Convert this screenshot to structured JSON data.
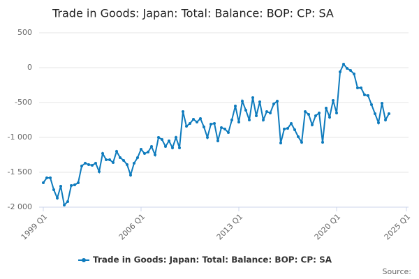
{
  "chart_data": {
    "type": "line",
    "title": "Trade in Goods: Japan: Total: Balance: BOP: CP: SA",
    "source": "Source:",
    "categories": [
      "1999 Q1",
      null,
      null,
      null,
      null,
      null,
      null,
      null,
      null,
      null,
      null,
      null,
      null,
      null,
      null,
      null,
      null,
      null,
      null,
      null,
      null,
      null,
      null,
      null,
      null,
      null,
      null,
      null,
      "2006 Q1",
      null,
      null,
      null,
      null,
      null,
      null,
      null,
      null,
      null,
      null,
      null,
      null,
      null,
      null,
      null,
      null,
      null,
      null,
      null,
      null,
      null,
      null,
      null,
      null,
      null,
      null,
      null,
      "2013 Q1",
      null,
      null,
      null,
      null,
      null,
      null,
      null,
      null,
      null,
      null,
      null,
      null,
      null,
      null,
      null,
      null,
      null,
      null,
      null,
      null,
      null,
      null,
      null,
      null,
      null,
      null,
      null,
      "2020 Q1",
      null,
      null,
      null,
      null,
      null,
      null,
      null,
      null,
      null,
      null,
      null,
      null,
      null,
      null,
      null,
      null,
      null,
      null,
      null,
      "2025 Q1"
    ],
    "series": [
      {
        "name": "Trade in Goods: Japan: Total: Balance: BOP: CP: SA",
        "color": "#0e7bbd",
        "values": [
          -1650,
          -1580,
          -1580,
          -1750,
          -1870,
          -1700,
          -1970,
          -1920,
          -1690,
          -1680,
          -1650,
          -1410,
          -1370,
          -1390,
          -1400,
          -1370,
          -1490,
          -1230,
          -1320,
          -1320,
          -1360,
          -1200,
          -1290,
          -1330,
          -1390,
          -1540,
          -1370,
          -1290,
          -1170,
          -1230,
          -1210,
          -1130,
          -1250,
          -1000,
          -1030,
          -1130,
          -1050,
          -1150,
          -1000,
          -1150,
          -630,
          -840,
          -800,
          -740,
          -780,
          -730,
          -850,
          -1000,
          -810,
          -800,
          -1050,
          -860,
          -880,
          -930,
          -750,
          -550,
          -780,
          -480,
          -610,
          -750,
          -430,
          -690,
          -490,
          -750,
          -630,
          -650,
          -520,
          -480,
          -1080,
          -880,
          -870,
          -800,
          -890,
          -990,
          -1070,
          -630,
          -670,
          -820,
          -690,
          -650,
          -1070,
          -580,
          -710,
          -470,
          -650,
          -60,
          50,
          -10,
          -40,
          -90,
          -290,
          -290,
          -390,
          -400,
          -530,
          -660,
          -790,
          -510,
          -750,
          -660,
          null,
          null,
          null,
          null,
          null
        ]
      }
    ],
    "ylim": [
      -2000,
      500
    ],
    "yticks": [
      {
        "value": -2000,
        "label": "-2 000"
      },
      {
        "value": -1500,
        "label": "-1 500"
      },
      {
        "value": -1000,
        "label": "-1 000"
      },
      -500,
      0,
      500
    ],
    "grid": true,
    "legend": "bottom"
  }
}
